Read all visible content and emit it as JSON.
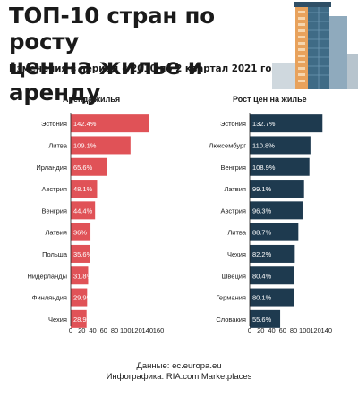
{
  "header": {
    "title_line1": "ТОП-10 стран по росту",
    "title_line2": "цен на жилье и аренду",
    "subtitle": "Изменения в период с 2010 по 2 квартал 2021 года"
  },
  "footer": {
    "source": "Данные: ec.europa.eu",
    "credit": "Инфографика: RIA.com Marketplaces"
  },
  "colors": {
    "rent_bar": "#e05257",
    "price_bar": "#1e3a4f",
    "text": "#1a1a1a",
    "building_glass": "#3f6b86",
    "building_wall": "#e8a25c"
  },
  "icons": [
    "building-illustration"
  ],
  "chart_data": [
    {
      "type": "bar",
      "orientation": "horizontal",
      "title": "Аренда жилья",
      "categories": [
        "Эстония",
        "Литва",
        "Ирландия",
        "Австрия",
        "Венгрия",
        "Латвия",
        "Польша",
        "Нидерланды",
        "Финляндия",
        "Чехия"
      ],
      "values": [
        142.4,
        109.1,
        65.6,
        48.1,
        44.4,
        36,
        35.6,
        31.8,
        29.9,
        28.9
      ],
      "labels": [
        "142.4%",
        "109.1%",
        "65.6%",
        "48.1%",
        "44.4%",
        "36%",
        "35.6%",
        "31.8%",
        "29.9%",
        "28.9%"
      ],
      "xticks": [
        "0",
        "20",
        "40",
        "60",
        "80",
        "100",
        "120",
        "140",
        "160"
      ],
      "xlim": [
        0,
        160
      ],
      "grid": false
    },
    {
      "type": "bar",
      "orientation": "horizontal",
      "title": "Рост цен на жилье",
      "categories": [
        "Эстония",
        "Люксембург",
        "Венгрия",
        "Латвия",
        "Австрия",
        "Литва",
        "Чехия",
        "Швеция",
        "Германия",
        "Словакия"
      ],
      "values": [
        132.7,
        110.8,
        108.9,
        99.1,
        96.3,
        88.7,
        82.2,
        80.4,
        80.1,
        55.6
      ],
      "labels": [
        "132.7%",
        "110.8%",
        "108.9%",
        "99.1%",
        "96.3%",
        "88.7%",
        "82.2%",
        "80.4%",
        "80.1%",
        "55.6%"
      ],
      "xticks": [
        "0",
        "20",
        "40",
        "60",
        "80",
        "100",
        "120",
        "140"
      ],
      "xlim": [
        0,
        140
      ],
      "grid": false
    }
  ]
}
